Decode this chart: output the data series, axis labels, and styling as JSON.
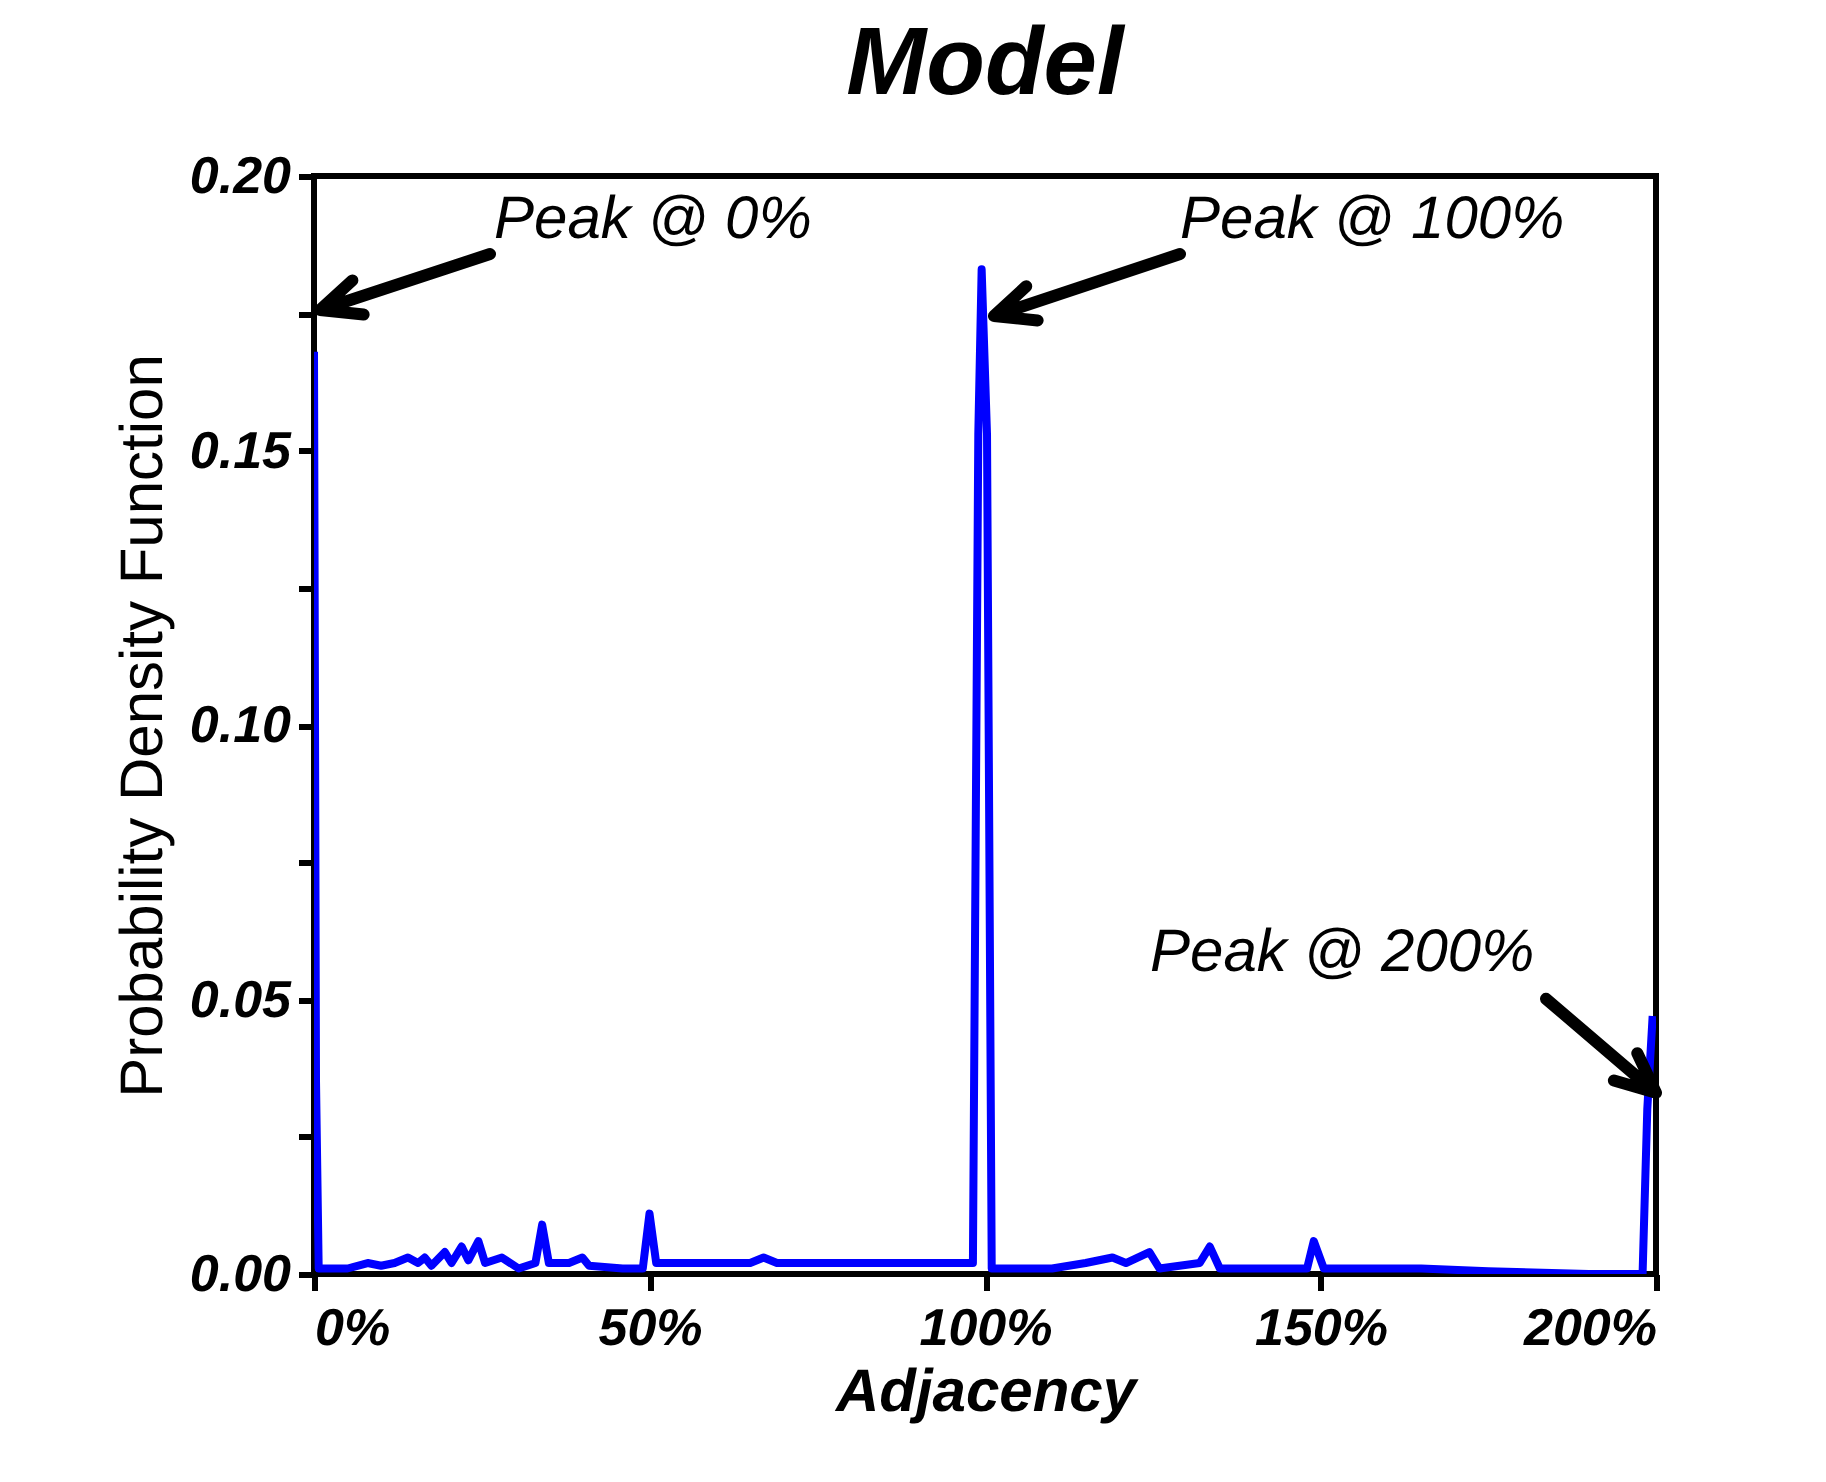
{
  "chart_data": {
    "type": "line",
    "title": "Model",
    "xlabel": "Adjacency",
    "ylabel": "Probability Density Function",
    "x": [
      0,
      0.3,
      0.7,
      5,
      8,
      10,
      12,
      14,
      15.5,
      16.5,
      17.5,
      19.5,
      20.5,
      22,
      23,
      24.5,
      25.5,
      28,
      30.5,
      33,
      34,
      35,
      38,
      40,
      41,
      46,
      49,
      50,
      51,
      60,
      65,
      67,
      69,
      95,
      98.2,
      99,
      99.5,
      100.3,
      101,
      110,
      115,
      119,
      121,
      124.5,
      126,
      132,
      133.5,
      135,
      148,
      149,
      150.5,
      165,
      175,
      190,
      198,
      198.7,
      199.5
    ],
    "series": [
      {
        "color": "#0000ff",
        "values": [
          0.168,
          0.035,
          0.001,
          0.001,
          0.002,
          0.0015,
          0.002,
          0.003,
          0.002,
          0.003,
          0.0015,
          0.004,
          0.002,
          0.005,
          0.0025,
          0.006,
          0.002,
          0.003,
          0.001,
          0.002,
          0.009,
          0.002,
          0.002,
          0.003,
          0.0015,
          0.001,
          0.001,
          0.011,
          0.002,
          0.002,
          0.002,
          0.003,
          0.002,
          0.002,
          0.002,
          0.153,
          0.183,
          0.153,
          0.001,
          0.001,
          0.002,
          0.003,
          0.002,
          0.004,
          0.001,
          0.002,
          0.005,
          0.001,
          0.001,
          0.006,
          0.001,
          0.001,
          0.0005,
          0,
          0,
          0.03,
          0.047
        ]
      }
    ],
    "xlim": [
      0,
      200
    ],
    "xticks": [
      {
        "value": 0,
        "label": "0%"
      },
      {
        "value": 50,
        "label": "50%"
      },
      {
        "value": 100,
        "label": "100%"
      },
      {
        "value": 150,
        "label": "150%"
      },
      {
        "value": 200,
        "label": "200%"
      }
    ],
    "ylim": [
      0,
      0.2
    ],
    "yticks": [
      {
        "value": 0,
        "label": "0.00"
      },
      {
        "value": 0.025,
        "label": null
      },
      {
        "value": 0.05,
        "label": "0.05"
      },
      {
        "value": 0.075,
        "label": null
      },
      {
        "value": 0.1,
        "label": "0.10"
      },
      {
        "value": 0.125,
        "label": null
      },
      {
        "value": 0.15,
        "label": "0.15"
      },
      {
        "value": 0.175,
        "label": null
      },
      {
        "value": 0.2,
        "label": "0.20"
      }
    ],
    "annotations": [
      "Peak @ 0%",
      "Peak @ 100%",
      {
        "text": "Peak @ 200%",
        "x": 200,
        "y": 0.033
      }
    ],
    "grid": false,
    "marker": "none",
    "line_style": "solid"
  }
}
